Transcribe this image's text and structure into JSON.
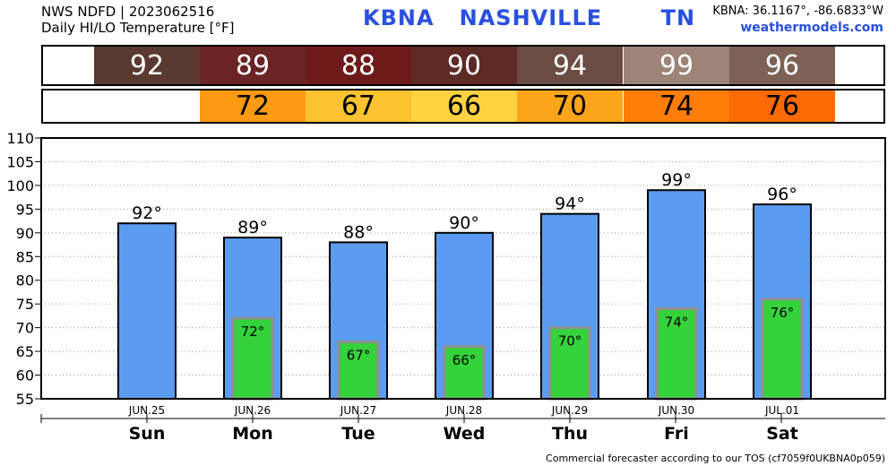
{
  "header": {
    "line1": "NWS NDFD | 2023062516",
    "line2": "Daily HI/LO Temperature [°F]",
    "station": "KBNA   NASHVILLE       TN",
    "coords": "KBNA: 36.1167°, -86.6833°W",
    "site": "weathermodels.com"
  },
  "footer": "Commercial forecaster according to our TOS (cf7059f0UKBNA0p059)",
  "hi_strip": [
    {
      "value": "92",
      "color": "#5a3a30"
    },
    {
      "value": "89",
      "color": "#6a2424"
    },
    {
      "value": "88",
      "color": "#6e1a1a"
    },
    {
      "value": "90",
      "color": "#5e2a26"
    },
    {
      "value": "94",
      "color": "#6a4c44"
    },
    {
      "value": "99",
      "color": "#9c8478"
    },
    {
      "value": "96",
      "color": "#7c6256"
    }
  ],
  "lo_strip": [
    {
      "value": "",
      "color": "#ffffff"
    },
    {
      "value": "72",
      "color": "#fc9a14"
    },
    {
      "value": "67",
      "color": "#fcc230"
    },
    {
      "value": "66",
      "color": "#fdd142"
    },
    {
      "value": "70",
      "color": "#fca51a"
    },
    {
      "value": "74",
      "color": "#fc7d08"
    },
    {
      "value": "76",
      "color": "#fc6a04"
    }
  ],
  "chart_data": {
    "type": "bar",
    "categories": [
      "Sun",
      "Mon",
      "Tue",
      "Wed",
      "Thu",
      "Fri",
      "Sat"
    ],
    "dates": [
      "JUN.25",
      "JUN.26",
      "JUN.27",
      "JUN.28",
      "JUN.29",
      "JUN.30",
      "JUL.01"
    ],
    "series": [
      {
        "name": "",
        "values": [
          92,
          89,
          88,
          90,
          94,
          99,
          96
        ],
        "color": "#5b9cf0",
        "labels": [
          "92°",
          "89°",
          "88°",
          "90°",
          "94°",
          "99°",
          "96°"
        ]
      },
      {
        "name": "",
        "values": [
          null,
          72,
          67,
          66,
          70,
          74,
          76
        ],
        "color": "#36d23c",
        "labels": [
          "",
          "72°",
          "67°",
          "66°",
          "70°",
          "74°",
          "76°"
        ]
      }
    ],
    "ylim": [
      55,
      110
    ],
    "yticks": [
      "55",
      "60",
      "65",
      "70",
      "75",
      "80",
      "85",
      "90",
      "95",
      "100",
      "105",
      "110"
    ],
    "grid": true
  }
}
